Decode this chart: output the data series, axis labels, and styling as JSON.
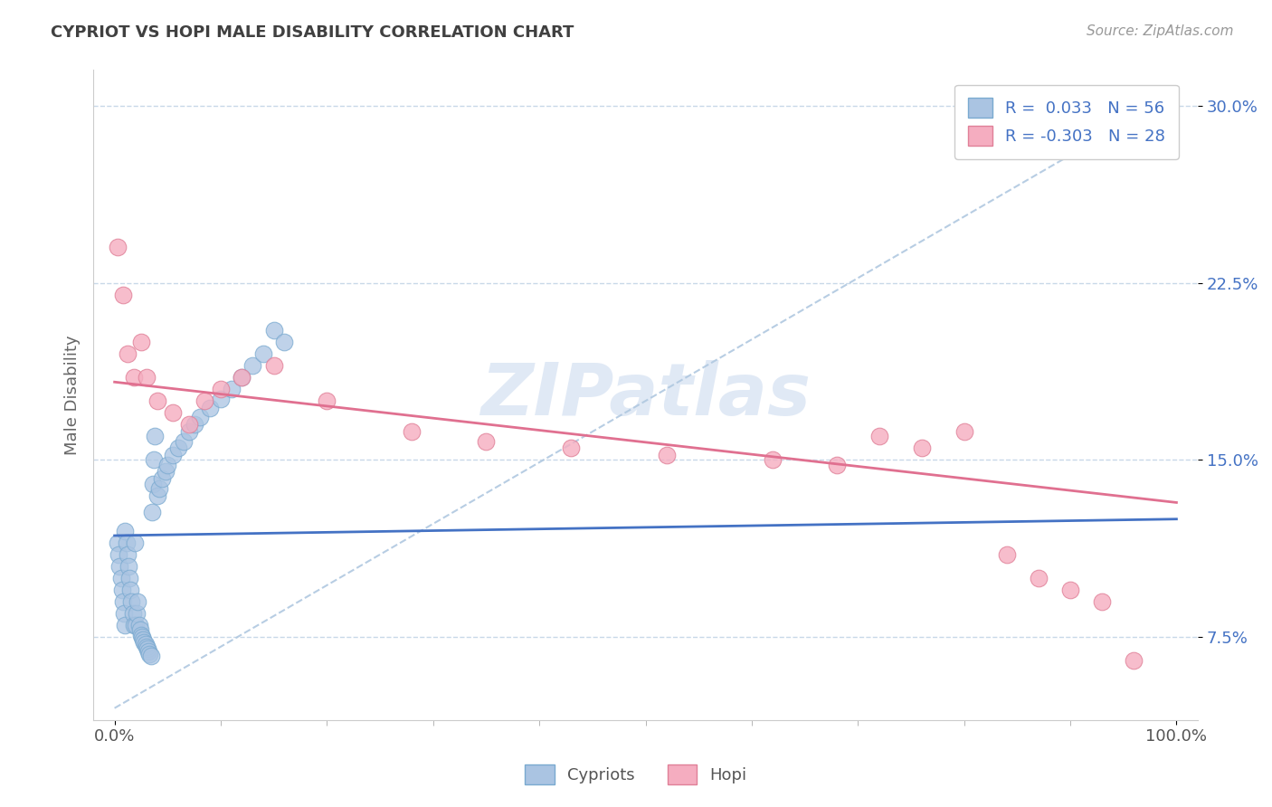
{
  "title": "CYPRIOT VS HOPI MALE DISABILITY CORRELATION CHART",
  "source": "Source: ZipAtlas.com",
  "ylabel": "Male Disability",
  "xlim": [
    -0.02,
    1.02
  ],
  "ylim": [
    0.04,
    0.315
  ],
  "x_ticks": [
    0.0,
    1.0
  ],
  "x_tick_labels": [
    "0.0%",
    "100.0%"
  ],
  "y_ticks": [
    0.075,
    0.15,
    0.225,
    0.3
  ],
  "y_tick_labels": [
    "7.5%",
    "15.0%",
    "22.5%",
    "30.0%"
  ],
  "cypriot_color": "#aac4e2",
  "hopi_color": "#f5adc0",
  "cypriot_edge": "#7aaad0",
  "hopi_edge": "#e08098",
  "cypriot_line_color": "#4472c4",
  "hopi_line_color": "#e07090",
  "dashed_line_color": "#b0c8e0",
  "watermark_color": "#c8d8ee",
  "legend_R_cypriot": "0.033",
  "legend_N_cypriot": "56",
  "legend_R_hopi": "-0.303",
  "legend_N_hopi": "28",
  "cypriot_x": [
    0.003,
    0.004,
    0.005,
    0.006,
    0.007,
    0.008,
    0.009,
    0.01,
    0.01,
    0.011,
    0.012,
    0.013,
    0.014,
    0.015,
    0.016,
    0.017,
    0.018,
    0.019,
    0.02,
    0.021,
    0.022,
    0.023,
    0.024,
    0.025,
    0.026,
    0.027,
    0.028,
    0.029,
    0.03,
    0.031,
    0.032,
    0.033,
    0.034,
    0.035,
    0.036,
    0.037,
    0.038,
    0.04,
    0.042,
    0.045,
    0.048,
    0.05,
    0.055,
    0.06,
    0.065,
    0.07,
    0.075,
    0.08,
    0.09,
    0.1,
    0.11,
    0.12,
    0.13,
    0.14,
    0.15,
    0.16
  ],
  "cypriot_y": [
    0.115,
    0.11,
    0.105,
    0.1,
    0.095,
    0.09,
    0.085,
    0.12,
    0.08,
    0.115,
    0.11,
    0.105,
    0.1,
    0.095,
    0.09,
    0.085,
    0.08,
    0.115,
    0.08,
    0.085,
    0.09,
    0.08,
    0.078,
    0.076,
    0.075,
    0.074,
    0.073,
    0.072,
    0.071,
    0.07,
    0.069,
    0.068,
    0.067,
    0.128,
    0.14,
    0.15,
    0.16,
    0.135,
    0.138,
    0.142,
    0.145,
    0.148,
    0.152,
    0.155,
    0.158,
    0.162,
    0.165,
    0.168,
    0.172,
    0.176,
    0.18,
    0.185,
    0.19,
    0.195,
    0.205,
    0.2
  ],
  "hopi_x": [
    0.003,
    0.008,
    0.012,
    0.018,
    0.025,
    0.03,
    0.04,
    0.055,
    0.07,
    0.085,
    0.1,
    0.12,
    0.15,
    0.2,
    0.28,
    0.35,
    0.43,
    0.52,
    0.62,
    0.68,
    0.72,
    0.76,
    0.8,
    0.84,
    0.87,
    0.9,
    0.93,
    0.96
  ],
  "hopi_y": [
    0.24,
    0.22,
    0.195,
    0.185,
    0.2,
    0.185,
    0.175,
    0.17,
    0.165,
    0.175,
    0.18,
    0.185,
    0.19,
    0.175,
    0.162,
    0.158,
    0.155,
    0.152,
    0.15,
    0.148,
    0.16,
    0.155,
    0.162,
    0.11,
    0.1,
    0.095,
    0.09,
    0.065
  ],
  "background_color": "#ffffff",
  "grid_color": "#c8d8e8",
  "title_color": "#404040",
  "tick_color": "#4472c4",
  "figsize": [
    14.06,
    8.92
  ],
  "dpi": 100
}
